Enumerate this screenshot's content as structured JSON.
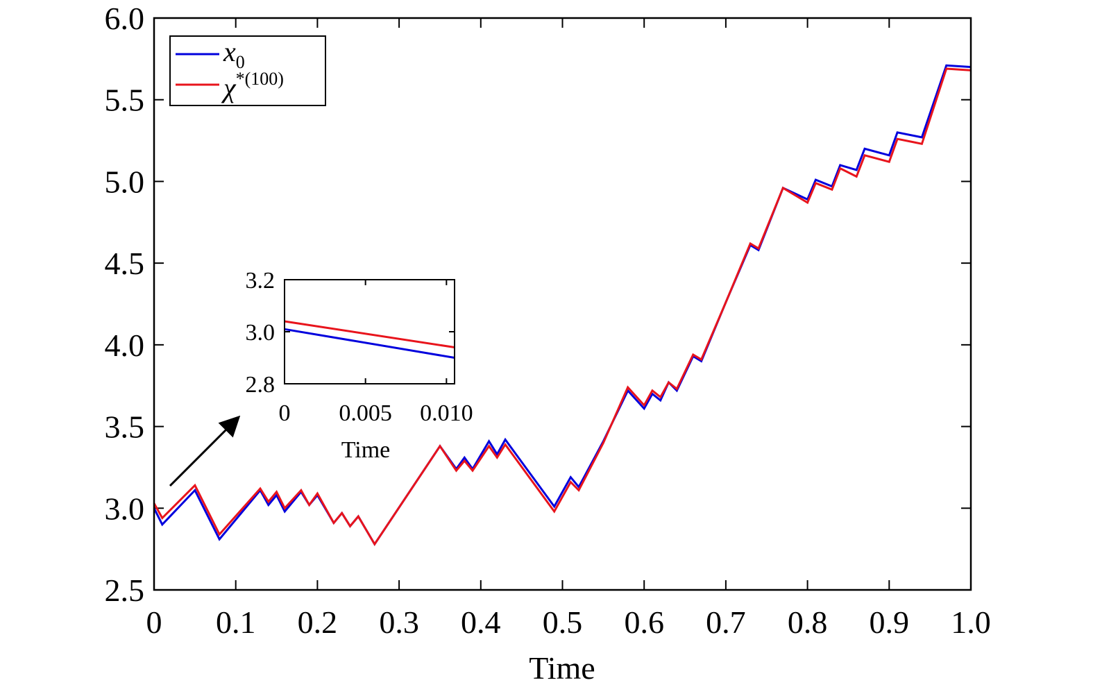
{
  "chart_data": [
    {
      "type": "line",
      "title": "",
      "xlabel": "Time",
      "ylabel": "",
      "xlim": [
        0,
        1.0
      ],
      "ylim": [
        2.5,
        6.0
      ],
      "x_ticks": [
        0,
        0.1,
        0.2,
        0.3,
        0.4,
        0.5,
        0.6,
        0.7,
        0.8,
        0.9,
        1.0
      ],
      "x_tick_labels": [
        "0",
        "0.1",
        "0.2",
        "0.3",
        "0.4",
        "0.5",
        "0.6",
        "0.7",
        "0.8",
        "0.9",
        "1.0"
      ],
      "y_ticks": [
        2.5,
        3.0,
        3.5,
        4.0,
        4.5,
        5.0,
        5.5,
        6.0
      ],
      "y_tick_labels": [
        "2.5",
        "3.0",
        "3.5",
        "4.0",
        "4.5",
        "5.0",
        "5.5",
        "6.0"
      ],
      "grid": false,
      "legend": {
        "placement": "top-left",
        "entries": [
          {
            "main": "x",
            "sub": "0",
            "sup": ""
          },
          {
            "main": "χ",
            "sub": "",
            "sup": "*(100)"
          }
        ]
      },
      "series": [
        {
          "color": "#0000dd",
          "x": [
            0,
            0.01,
            0.05,
            0.08,
            0.13,
            0.14,
            0.15,
            0.16,
            0.18,
            0.19,
            0.2,
            0.22,
            0.23,
            0.24,
            0.25,
            0.27,
            0.35,
            0.37,
            0.38,
            0.39,
            0.41,
            0.42,
            0.43,
            0.49,
            0.51,
            0.52,
            0.55,
            0.58,
            0.6,
            0.61,
            0.62,
            0.63,
            0.64,
            0.66,
            0.67,
            0.7,
            0.73,
            0.74,
            0.77,
            0.8,
            0.81,
            0.83,
            0.84,
            0.86,
            0.87,
            0.9,
            0.91,
            0.94,
            0.97,
            1.0
          ],
          "y": [
            3.0,
            2.9,
            3.11,
            2.81,
            3.11,
            3.02,
            3.08,
            2.98,
            3.1,
            3.02,
            3.08,
            2.91,
            2.97,
            2.89,
            2.95,
            2.78,
            3.38,
            3.24,
            3.31,
            3.24,
            3.41,
            3.33,
            3.42,
            3.01,
            3.19,
            3.13,
            3.41,
            3.72,
            3.61,
            3.7,
            3.66,
            3.77,
            3.72,
            3.93,
            3.9,
            4.26,
            4.61,
            4.58,
            4.96,
            4.89,
            5.01,
            4.97,
            5.1,
            5.07,
            5.2,
            5.16,
            5.3,
            5.27,
            5.71,
            5.7
          ]
        },
        {
          "color": "#e8141c",
          "x": [
            0,
            0.01,
            0.03,
            0.05,
            0.08,
            0.13,
            0.14,
            0.15,
            0.16,
            0.18,
            0.19,
            0.2,
            0.22,
            0.23,
            0.24,
            0.25,
            0.27,
            0.35,
            0.37,
            0.38,
            0.39,
            0.41,
            0.42,
            0.43,
            0.49,
            0.51,
            0.52,
            0.55,
            0.58,
            0.6,
            0.61,
            0.62,
            0.63,
            0.64,
            0.66,
            0.67,
            0.7,
            0.73,
            0.74,
            0.77,
            0.8,
            0.81,
            0.83,
            0.84,
            0.86,
            0.87,
            0.9,
            0.91,
            0.93,
            0.94,
            0.97,
            1.0
          ],
          "y": [
            3.03,
            2.94,
            3.04,
            3.14,
            2.84,
            3.12,
            3.04,
            3.1,
            3.0,
            3.11,
            3.02,
            3.09,
            2.91,
            2.97,
            2.89,
            2.95,
            2.78,
            3.38,
            3.23,
            3.29,
            3.23,
            3.38,
            3.31,
            3.39,
            2.98,
            3.16,
            3.11,
            3.4,
            3.74,
            3.63,
            3.72,
            3.68,
            3.77,
            3.73,
            3.94,
            3.91,
            4.26,
            4.62,
            4.59,
            4.96,
            4.87,
            4.99,
            4.95,
            5.08,
            5.03,
            5.16,
            5.12,
            5.26,
            5.24,
            5.23,
            5.69,
            5.68
          ]
        }
      ]
    },
    {
      "type": "line",
      "title": "",
      "xlabel": "Time",
      "ylabel": "",
      "xlim": [
        0,
        0.0105
      ],
      "ylim": [
        2.8,
        3.2
      ],
      "x_ticks": [
        0,
        0.005,
        0.01
      ],
      "x_tick_labels": [
        "0",
        "0.005",
        "0.010"
      ],
      "y_ticks": [
        2.8,
        3.0,
        3.2
      ],
      "y_tick_labels": [
        "2.8",
        "3.0",
        "3.2"
      ],
      "grid": false,
      "annotation": "arrow pointing from the start of the main curves to the inset",
      "series": [
        {
          "color": "#0000dd",
          "x": [
            0,
            0.0105
          ],
          "y": [
            3.01,
            2.9
          ]
        },
        {
          "color": "#e8141c",
          "x": [
            0,
            0.0105
          ],
          "y": [
            3.04,
            2.94
          ]
        }
      ]
    }
  ]
}
